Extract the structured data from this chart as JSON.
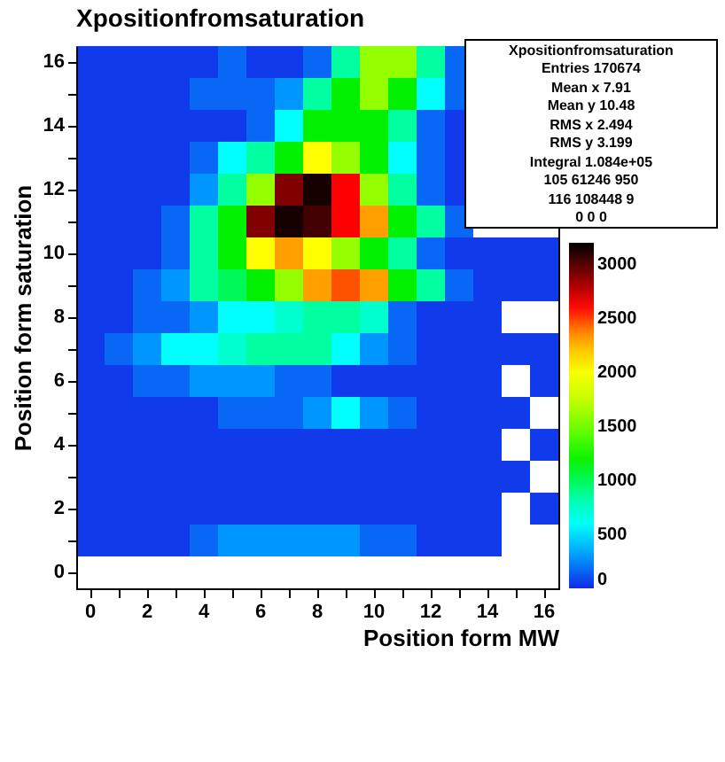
{
  "chart_data": {
    "type": "heatmap",
    "title": "Xpositionfromsaturation",
    "xlabel": "Position form MW",
    "ylabel": "Position form saturation",
    "categories": [
      "0",
      null,
      "2",
      null,
      "4",
      null,
      "6",
      null,
      "8",
      null,
      "10",
      null,
      "12",
      null,
      "14",
      null,
      "16"
    ],
    "y_categories": [
      "16",
      null,
      "14",
      null,
      "12",
      null,
      "10",
      null,
      "8",
      null,
      "6",
      null,
      "4",
      null,
      "2",
      null,
      "0"
    ],
    "cells": [
      [
        50,
        50,
        50,
        50,
        50,
        170,
        50,
        50,
        170,
        873,
        1600,
        1600,
        873,
        170,
        null,
        null,
        null
      ],
      [
        50,
        50,
        50,
        50,
        170,
        170,
        170,
        291,
        873,
        1164,
        1600,
        1164,
        582,
        170,
        null,
        null,
        null
      ],
      [
        50,
        50,
        50,
        50,
        50,
        50,
        170,
        582,
        1164,
        1164,
        1164,
        873,
        170,
        50,
        null,
        null,
        null
      ],
      [
        50,
        50,
        50,
        50,
        170,
        582,
        873,
        1164,
        2036,
        1600,
        1164,
        582,
        170,
        50,
        null,
        null,
        null
      ],
      [
        50,
        50,
        50,
        50,
        291,
        873,
        1600,
        2909,
        3150,
        2618,
        1600,
        873,
        170,
        50,
        null,
        null,
        null
      ],
      [
        50,
        50,
        50,
        170,
        873,
        1164,
        2909,
        3150,
        3050,
        2618,
        2327,
        1164,
        873,
        170,
        null,
        null,
        null
      ],
      [
        50,
        50,
        50,
        170,
        873,
        1164,
        2036,
        2327,
        2036,
        1600,
        1164,
        873,
        170,
        50,
        50,
        50,
        50
      ],
      [
        50,
        50,
        170,
        291,
        873,
        1000,
        1164,
        1600,
        2327,
        2470,
        2327,
        1164,
        873,
        170,
        50,
        50,
        50
      ],
      [
        50,
        50,
        170,
        170,
        291,
        582,
        582,
        730,
        873,
        873,
        730,
        170,
        50,
        50,
        50,
        null,
        null
      ],
      [
        50,
        170,
        291,
        582,
        582,
        730,
        873,
        873,
        873,
        582,
        291,
        170,
        50,
        50,
        50,
        50,
        50
      ],
      [
        50,
        50,
        170,
        170,
        291,
        291,
        291,
        170,
        170,
        50,
        50,
        50,
        50,
        50,
        50,
        null,
        50
      ],
      [
        50,
        50,
        50,
        50,
        50,
        170,
        170,
        170,
        291,
        582,
        291,
        170,
        50,
        50,
        50,
        50,
        null
      ],
      [
        50,
        50,
        50,
        50,
        50,
        50,
        50,
        50,
        50,
        50,
        50,
        50,
        50,
        50,
        50,
        null,
        50
      ],
      [
        50,
        50,
        50,
        50,
        50,
        50,
        50,
        50,
        50,
        50,
        50,
        50,
        50,
        50,
        50,
        50,
        null
      ],
      [
        50,
        50,
        50,
        50,
        50,
        50,
        50,
        50,
        50,
        50,
        50,
        50,
        50,
        50,
        50,
        null,
        50
      ],
      [
        50,
        50,
        50,
        50,
        170,
        291,
        291,
        291,
        291,
        291,
        170,
        170,
        50,
        50,
        50,
        null,
        null
      ],
      [
        null,
        null,
        null,
        null,
        null,
        null,
        null,
        null,
        null,
        null,
        null,
        null,
        null,
        null,
        null,
        null,
        null
      ]
    ],
    "clim": [
      0,
      3200
    ],
    "cticks": [
      0,
      500,
      1000,
      1500,
      2000,
      2500,
      3000
    ],
    "annotations": [
      "Xpositionfromsaturation",
      "Entries 170674",
      "Mean x 7.91",
      "Mean y 10.48",
      "RMS x 2.494",
      "RMS y 3.199",
      "Integral 1.084e+05",
      "105 61246 950",
      "116 108448 9",
      "0 0 0"
    ]
  }
}
